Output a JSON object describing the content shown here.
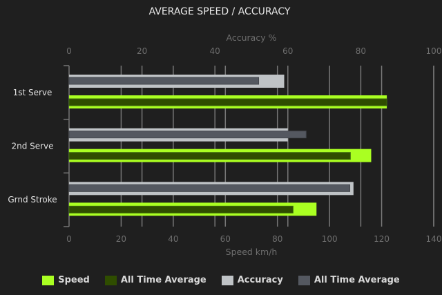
{
  "chart_data": {
    "type": "bar",
    "title": "AVERAGE SPEED / ACCURACY",
    "categories": [
      "1st Serve",
      "2nd Serve",
      "Grnd Stroke"
    ],
    "orientation": "horizontal",
    "grid": true,
    "legend_position": "bottom",
    "axes": {
      "speed": {
        "label": "Speed km/h",
        "position": "bottom",
        "range": [
          0,
          140
        ],
        "ticks": [
          0,
          20,
          40,
          60,
          80,
          100,
          120,
          140
        ]
      },
      "accuracy": {
        "label": "Accuracy %",
        "position": "top",
        "range": [
          0,
          100
        ],
        "ticks": [
          0,
          20,
          40,
          60,
          80,
          100
        ]
      }
    },
    "series": [
      {
        "name": "Speed",
        "axis": "speed",
        "color": "#aaff22",
        "values": [
          122,
          116,
          95
        ]
      },
      {
        "name": "All Time Average",
        "axis": "speed",
        "color": "#2f4d00",
        "values": [
          122,
          108,
          86
        ]
      },
      {
        "name": "Accuracy",
        "axis": "accuracy",
        "color": "#bfc3c6",
        "values": [
          59,
          60,
          78
        ]
      },
      {
        "name": "All Time Average",
        "axis": "accuracy",
        "color": "#545860",
        "values": [
          52,
          65,
          77
        ]
      }
    ]
  }
}
